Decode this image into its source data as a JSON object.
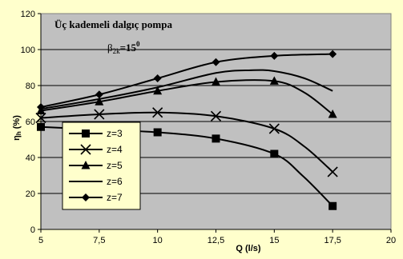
{
  "chart_data": {
    "type": "line",
    "title": "Üç kademeli dalgıç pompa",
    "annotation": {
      "beta_symbol": "β",
      "beta_subscript": "2k",
      "beta_value": "=15",
      "beta_superscript": "0"
    },
    "xlabel": "Q (l/s)",
    "ylabel": {
      "symbol": "η",
      "subscript": "h",
      "unit": "(%)"
    },
    "xlim": [
      5,
      20
    ],
    "ylim": [
      0,
      120
    ],
    "x_ticks": [
      "5",
      "7,5",
      "10",
      "12,5",
      "15",
      "17,5",
      "20"
    ],
    "x_tick_values": [
      5,
      7.5,
      10,
      12.5,
      15,
      17.5,
      20
    ],
    "y_ticks": [
      "0",
      "20",
      "40",
      "60",
      "80",
      "100",
      "120"
    ],
    "y_tick_values": [
      0,
      20,
      40,
      60,
      80,
      100,
      120
    ],
    "grid": "horizontal",
    "legend_position": "left",
    "colors": {
      "outer_bg": "#ffffcc",
      "plot_bg": "#c0c0c0",
      "grid": "#000000",
      "series": "#000000"
    },
    "series": [
      {
        "name": "z=3",
        "marker": "square",
        "points": [
          [
            5,
            57
          ],
          [
            10,
            54
          ],
          [
            12.5,
            50.5
          ],
          [
            15,
            42
          ],
          [
            17.5,
            13
          ]
        ],
        "curve": [
          [
            5,
            57
          ],
          [
            7.5,
            55.5
          ],
          [
            10,
            54
          ],
          [
            12.5,
            50.5
          ],
          [
            15,
            42
          ],
          [
            16.2,
            30
          ],
          [
            17.5,
            13
          ]
        ]
      },
      {
        "name": "z=4",
        "marker": "x",
        "points": [
          [
            5,
            62
          ],
          [
            7.5,
            64
          ],
          [
            10,
            65
          ],
          [
            12.5,
            63
          ],
          [
            15,
            56
          ],
          [
            17.5,
            32
          ]
        ],
        "curve": [
          [
            5,
            62
          ],
          [
            7.5,
            64
          ],
          [
            10,
            65
          ],
          [
            12.5,
            63
          ],
          [
            15,
            56
          ],
          [
            16.3,
            46
          ],
          [
            17.5,
            32
          ]
        ]
      },
      {
        "name": "z=5",
        "marker": "triangle",
        "points": [
          [
            5,
            66
          ],
          [
            7.5,
            71
          ],
          [
            10,
            77
          ],
          [
            12.5,
            82
          ],
          [
            15,
            82.5
          ],
          [
            17.5,
            64
          ]
        ],
        "curve": [
          [
            5,
            66
          ],
          [
            7.5,
            71
          ],
          [
            10,
            77
          ],
          [
            12.5,
            82
          ],
          [
            15,
            82.5
          ],
          [
            16.3,
            76
          ],
          [
            17.5,
            64
          ]
        ]
      },
      {
        "name": "z=6",
        "marker": "none",
        "points": [],
        "curve": [
          [
            5,
            67
          ],
          [
            7.5,
            72.5
          ],
          [
            10,
            79
          ],
          [
            12.5,
            87
          ],
          [
            14,
            88.5
          ],
          [
            15,
            88
          ],
          [
            16.3,
            84
          ],
          [
            17.5,
            77
          ]
        ]
      },
      {
        "name": "z=7",
        "marker": "diamond",
        "points": [
          [
            5,
            68
          ],
          [
            7.5,
            75
          ],
          [
            10,
            84
          ],
          [
            12.5,
            93
          ],
          [
            15,
            96.5
          ],
          [
            17.5,
            97.5
          ]
        ],
        "curve": [
          [
            5,
            68
          ],
          [
            7.5,
            75
          ],
          [
            10,
            84
          ],
          [
            12.5,
            93
          ],
          [
            15,
            96.5
          ],
          [
            17.5,
            97.5
          ]
        ]
      }
    ]
  }
}
